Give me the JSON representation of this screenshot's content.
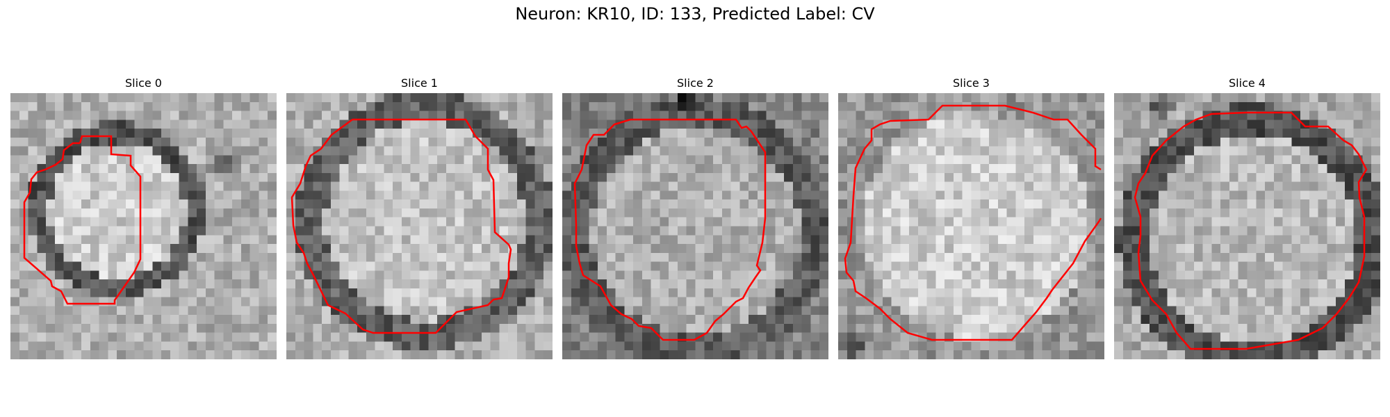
{
  "title": "Neuron: KR10, ID: 133, Predicted Label: CV",
  "contour_color": "#ff0000",
  "slices": [
    {
      "title": "Slice 0"
    },
    {
      "title": "Slice 1"
    },
    {
      "title": "Slice 2"
    },
    {
      "title": "Slice 3"
    },
    {
      "title": "Slice 4"
    }
  ]
}
